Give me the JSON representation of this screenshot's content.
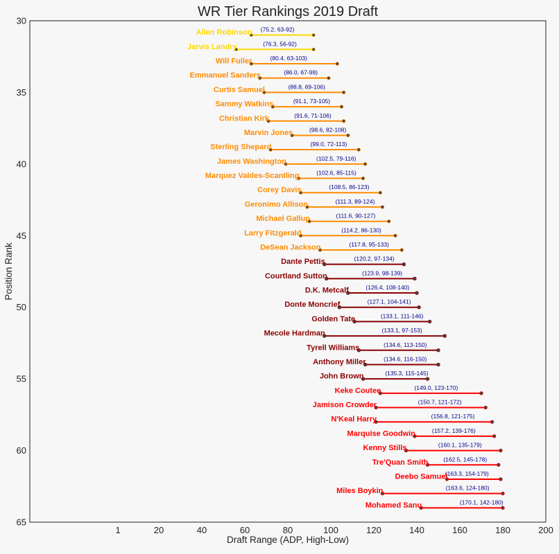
{
  "chart_data": {
    "type": "scatter",
    "title": "WR Tier Rankings 2019 Draft",
    "xlabel": "Draft Range (ADP, High-Low)",
    "ylabel": "Position Rank",
    "xlim": [
      -40,
      200
    ],
    "ylim": [
      30,
      65
    ],
    "y_inverted": true,
    "grid": false,
    "x_ticks": [
      1,
      20,
      40,
      60,
      80,
      100,
      120,
      140,
      160,
      180,
      200
    ],
    "y_ticks": [
      30,
      35,
      40,
      45,
      50,
      55,
      60,
      65
    ],
    "tier_colors": [
      "#ffd700",
      "#ff8c00",
      "#8b0000",
      "#ff0000"
    ],
    "players": [
      {
        "name": "Allen Robinson",
        "rank": 31,
        "adp": 75.2,
        "low": 63,
        "high": 92,
        "label": "(75.2, 63-92)",
        "tier": 1
      },
      {
        "name": "Jarvis Landry",
        "rank": 32,
        "adp": 76.3,
        "low": 56,
        "high": 92,
        "label": "(76.3, 56-92)",
        "tier": 1
      },
      {
        "name": "Will Fuller",
        "rank": 33,
        "adp": 80.4,
        "low": 63,
        "high": 103,
        "label": "(80.4, 63-103)",
        "tier": 2
      },
      {
        "name": "Emmanuel Sanders",
        "rank": 34,
        "adp": 86.0,
        "low": 67,
        "high": 99,
        "label": "(86.0, 67-99)",
        "tier": 2
      },
      {
        "name": "Curtis Samuel",
        "rank": 35,
        "adp": 88.8,
        "low": 69,
        "high": 106,
        "label": "(88.8, 69-106)",
        "tier": 2
      },
      {
        "name": "Sammy Watkins",
        "rank": 36,
        "adp": 91.1,
        "low": 73,
        "high": 105,
        "label": "(91.1, 73-105)",
        "tier": 2
      },
      {
        "name": "Christian Kirk",
        "rank": 37,
        "adp": 91.6,
        "low": 71,
        "high": 106,
        "label": "(91.6, 71-106)",
        "tier": 2
      },
      {
        "name": "Marvin Jones",
        "rank": 38,
        "adp": 98.6,
        "low": 82,
        "high": 108,
        "label": "(98.6, 82-108)",
        "tier": 2
      },
      {
        "name": "Sterling Shepard",
        "rank": 39,
        "adp": 99.0,
        "low": 72,
        "high": 113,
        "label": "(99.0, 72-113)",
        "tier": 2
      },
      {
        "name": "James Washington",
        "rank": 40,
        "adp": 102.5,
        "low": 79,
        "high": 116,
        "label": "(102.5, 79-116)",
        "tier": 2
      },
      {
        "name": "Marquez Valdes-Scantling",
        "rank": 41,
        "adp": 102.6,
        "low": 85,
        "high": 115,
        "label": "(102.6, 85-115)",
        "tier": 2
      },
      {
        "name": "Corey Davis",
        "rank": 42,
        "adp": 108.5,
        "low": 86,
        "high": 123,
        "label": "(108.5, 86-123)",
        "tier": 2
      },
      {
        "name": "Geronimo Allison",
        "rank": 43,
        "adp": 111.3,
        "low": 89,
        "high": 124,
        "label": "(111.3, 89-124)",
        "tier": 2
      },
      {
        "name": "Michael Gallup",
        "rank": 44,
        "adp": 111.6,
        "low": 90,
        "high": 127,
        "label": "(111.6, 90-127)",
        "tier": 2
      },
      {
        "name": "Larry Fitzgerald",
        "rank": 45,
        "adp": 114.2,
        "low": 86,
        "high": 130,
        "label": "(114.2, 86-130)",
        "tier": 2
      },
      {
        "name": "DeSean Jackson",
        "rank": 46,
        "adp": 117.8,
        "low": 95,
        "high": 133,
        "label": "(117.8, 95-133)",
        "tier": 2
      },
      {
        "name": "Dante Pettis",
        "rank": 47,
        "adp": 120.2,
        "low": 97,
        "high": 134,
        "label": "(120.2, 97-134)",
        "tier": 3
      },
      {
        "name": "Courtland Sutton",
        "rank": 48,
        "adp": 123.9,
        "low": 98,
        "high": 139,
        "label": "(123.9, 98-139)",
        "tier": 3
      },
      {
        "name": "D.K. Metcalf",
        "rank": 49,
        "adp": 126.4,
        "low": 108,
        "high": 140,
        "label": "(126.4, 108-140)",
        "tier": 3
      },
      {
        "name": "Donte Moncrief",
        "rank": 50,
        "adp": 127.1,
        "low": 104,
        "high": 141,
        "label": "(127.1, 104-141)",
        "tier": 3
      },
      {
        "name": "Golden Tate",
        "rank": 51,
        "adp": 133.1,
        "low": 111,
        "high": 146,
        "label": "(133.1, 111-146)",
        "tier": 3
      },
      {
        "name": "Mecole Hardman",
        "rank": 52,
        "adp": 133.1,
        "low": 97,
        "high": 153,
        "label": "(133.1, 97-153)",
        "tier": 3
      },
      {
        "name": "Tyrell Williams",
        "rank": 53,
        "adp": 134.6,
        "low": 113,
        "high": 150,
        "label": "(134.6, 113-150)",
        "tier": 3
      },
      {
        "name": "Anthony Miller",
        "rank": 54,
        "adp": 134.6,
        "low": 116,
        "high": 150,
        "label": "(134.6, 116-150)",
        "tier": 3
      },
      {
        "name": "John Brown",
        "rank": 55,
        "adp": 135.3,
        "low": 115,
        "high": 145,
        "label": "(135.3, 115-145)",
        "tier": 3
      },
      {
        "name": "Keke Coutee",
        "rank": 56,
        "adp": 149.0,
        "low": 123,
        "high": 170,
        "label": "(149.0, 123-170)",
        "tier": 4
      },
      {
        "name": "Jamison Crowder",
        "rank": 57,
        "adp": 150.7,
        "low": 121,
        "high": 172,
        "label": "(150.7, 121-172)",
        "tier": 4
      },
      {
        "name": "N'Keal Harry",
        "rank": 58,
        "adp": 156.8,
        "low": 121,
        "high": 175,
        "label": "(156.8, 121-175)",
        "tier": 4
      },
      {
        "name": "Marquise Goodwin",
        "rank": 59,
        "adp": 157.2,
        "low": 139,
        "high": 176,
        "label": "(157.2, 139-176)",
        "tier": 4
      },
      {
        "name": "Kenny Stills",
        "rank": 60,
        "adp": 160.1,
        "low": 135,
        "high": 179,
        "label": "(160.1, 135-179)",
        "tier": 4
      },
      {
        "name": "Tre'Quan Smith",
        "rank": 61,
        "adp": 162.5,
        "low": 145,
        "high": 178,
        "label": "(162.5, 145-178)",
        "tier": 4
      },
      {
        "name": "Deebo Samuel",
        "rank": 62,
        "adp": 163.3,
        "low": 154,
        "high": 179,
        "label": "(163.3, 154-179)",
        "tier": 4
      },
      {
        "name": "Miles Boykin",
        "rank": 63,
        "adp": 163.6,
        "low": 124,
        "high": 180,
        "label": "(163.6, 124-180)",
        "tier": 4
      },
      {
        "name": "Mohamed Sanu",
        "rank": 64,
        "adp": 170.1,
        "low": 142,
        "high": 180,
        "label": "(170.1, 142-180)",
        "tier": 4
      }
    ]
  }
}
